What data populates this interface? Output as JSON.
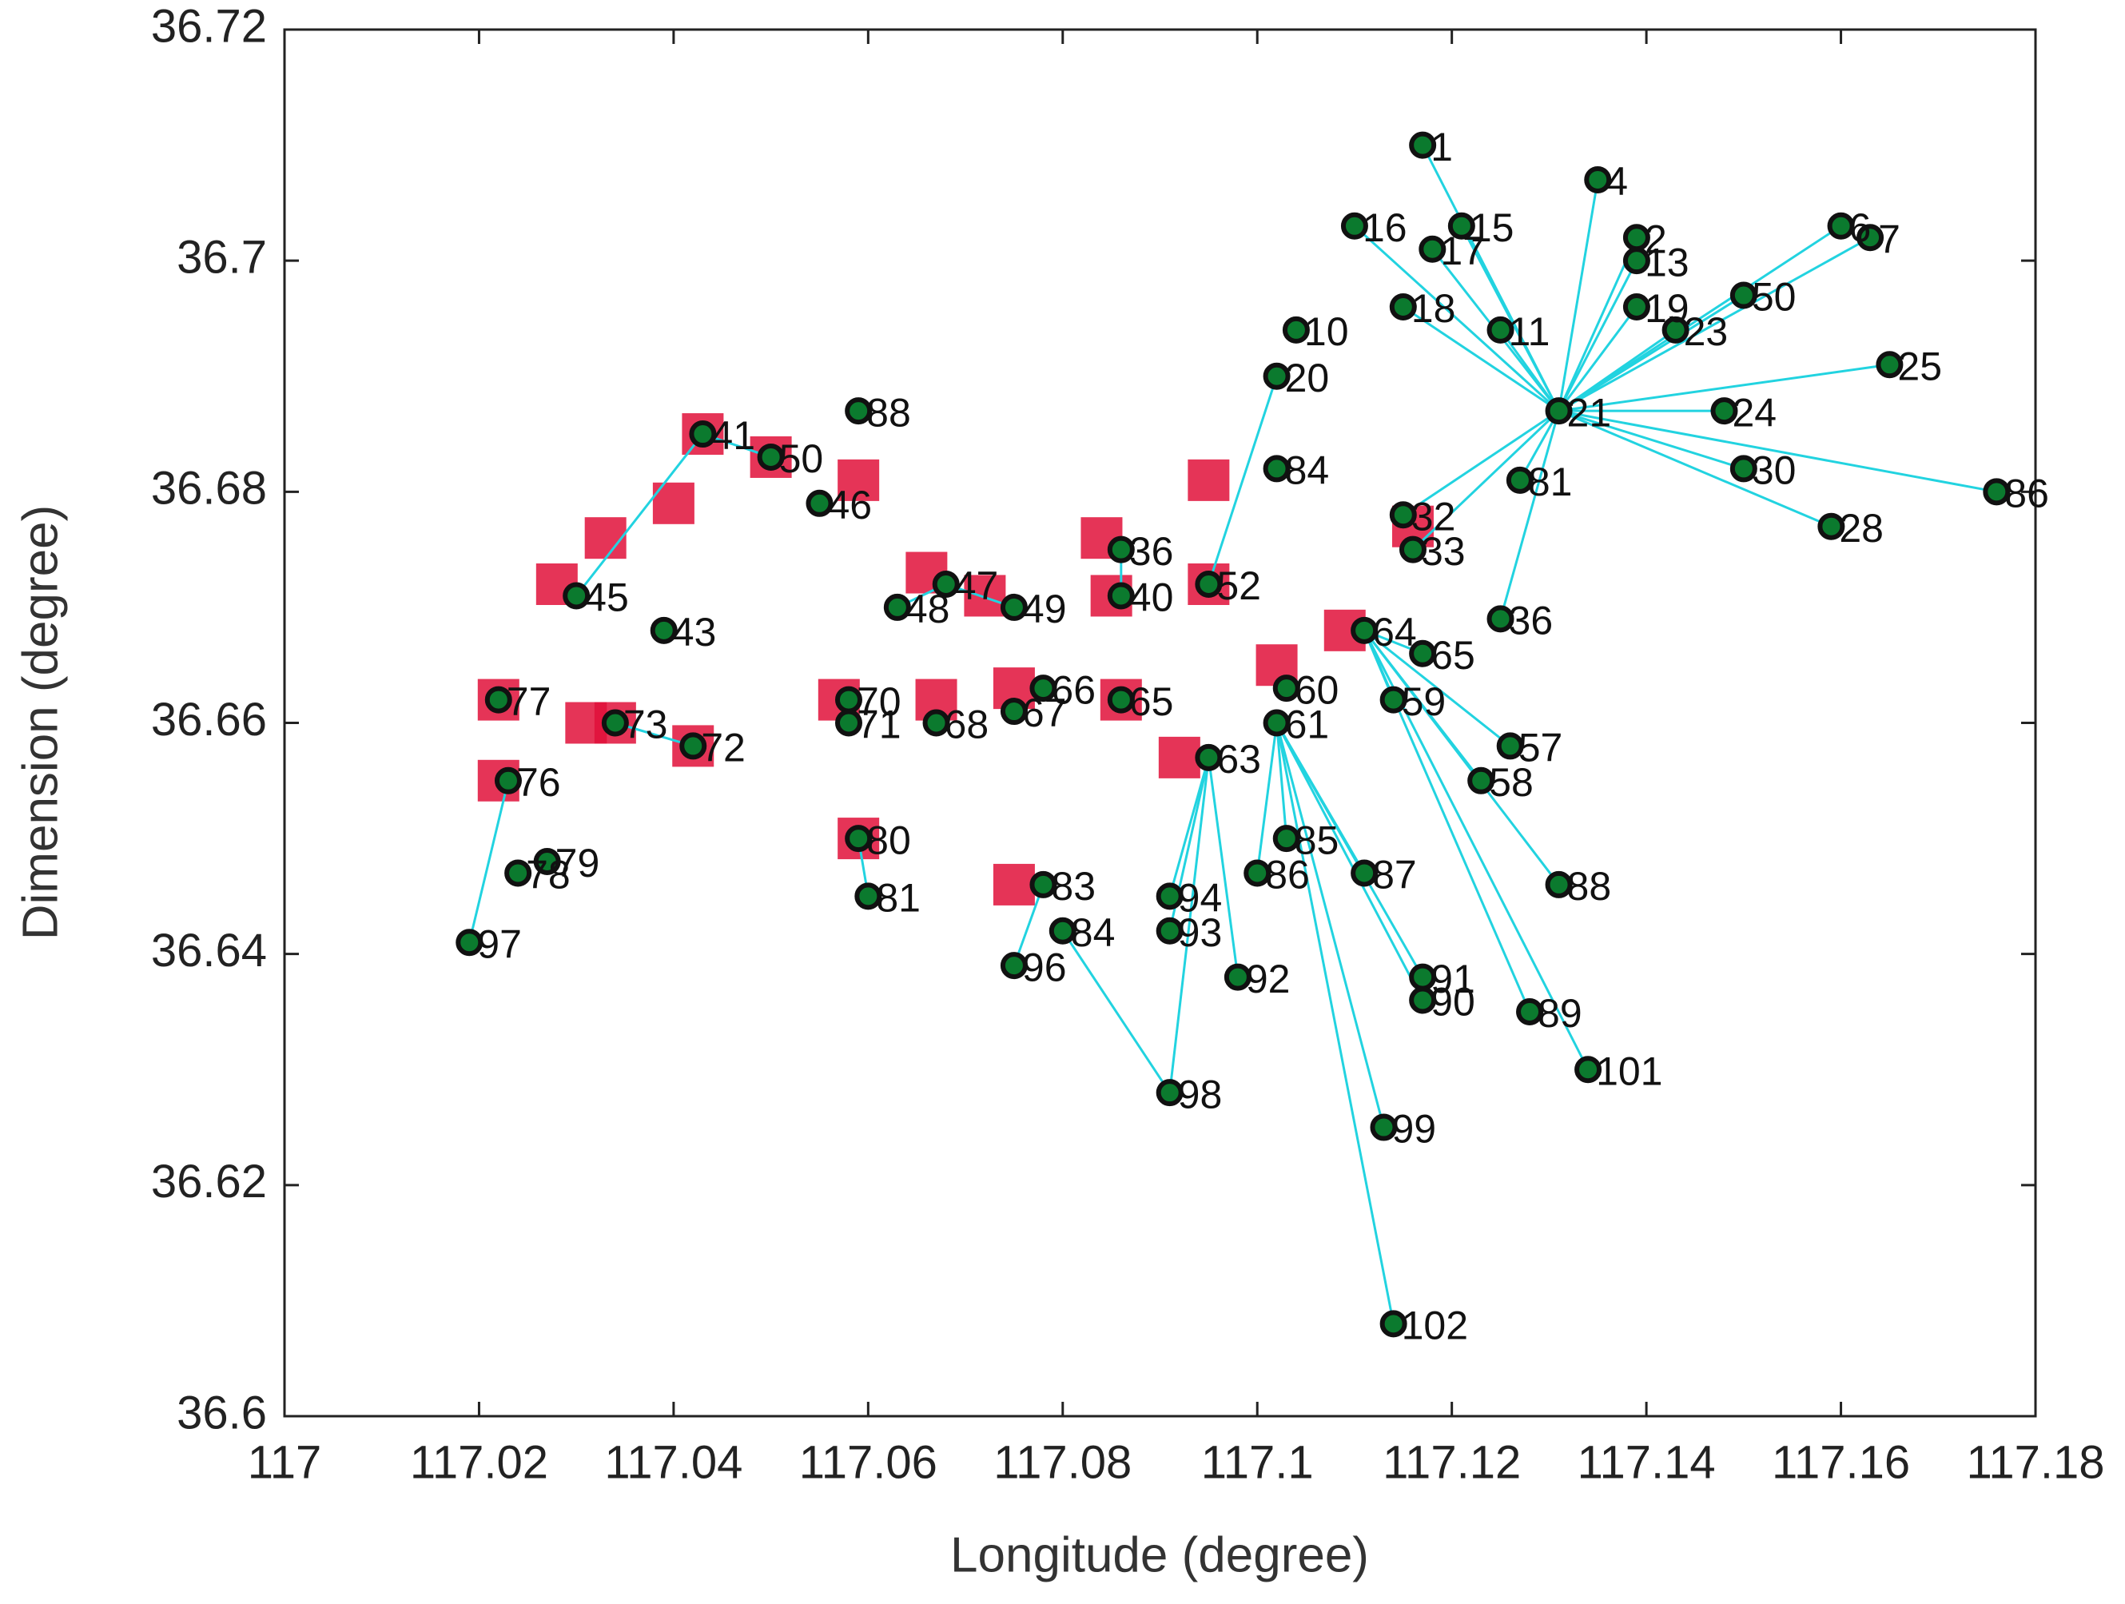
{
  "chart_data": {
    "type": "scatter",
    "xlabel": "Longitude (degree)",
    "ylabel": "Dimension (degree)",
    "xlim": [
      117,
      117.18
    ],
    "ylim": [
      36.6,
      36.72
    ],
    "xticks": [
      117,
      117.02,
      117.04,
      117.06,
      117.08,
      117.1,
      117.12,
      117.14,
      117.16,
      117.18
    ],
    "yticks": [
      36.6,
      36.62,
      36.64,
      36.66,
      36.68,
      36.7,
      36.72
    ],
    "point_color": "#0b7a2e",
    "center_color": "#e0103a",
    "link_color": "#22d3e0",
    "points": {
      "x": [
        117.131,
        117.114,
        117.019,
        117.091,
        117.113,
        117.176,
        117.165,
        117.059,
        117.102,
        117.095,
        117.102,
        117.135,
        117.148,
        117.159,
        117.15,
        117.111,
        117.117,
        117.114,
        117.126,
        117.123,
        117.131,
        117.111,
        117.103,
        117.1,
        117.117,
        117.117,
        117.128,
        117.134,
        117.098,
        117.091,
        117.091,
        117.075,
        117.08,
        117.078,
        117.059,
        117.06,
        117.042,
        117.034,
        117.022,
        117.023,
        117.027,
        117.024,
        117.058,
        117.058,
        117.067,
        117.075,
        117.078,
        117.086,
        117.102,
        117.103,
        117.095,
        117.068,
        117.075,
        117.063,
        117.055,
        117.05,
        117.043,
        117.03,
        117.039,
        117.086,
        117.086,
        117.143,
        117.139,
        117.139,
        117.139,
        117.16,
        117.163,
        117.15,
        117.115,
        117.125,
        117.11,
        117.121,
        117.118,
        117.104,
        117.127,
        117.115,
        117.116,
        117.125,
        117.117
      ],
      "y": [
        36.687,
        36.608,
        36.641,
        36.628,
        36.625,
        36.68,
        36.691,
        36.687,
        36.682,
        36.672,
        36.69,
        36.707,
        36.687,
        36.677,
        36.682,
        36.668,
        36.666,
        36.662,
        36.658,
        36.655,
        36.646,
        36.647,
        36.65,
        36.647,
        36.638,
        36.636,
        36.635,
        36.63,
        36.638,
        36.642,
        36.645,
        36.639,
        36.642,
        36.646,
        36.65,
        36.645,
        36.658,
        36.66,
        36.662,
        36.655,
        36.648,
        36.647,
        36.662,
        36.66,
        36.66,
        36.661,
        36.663,
        36.662,
        36.66,
        36.663,
        36.657,
        36.672,
        36.67,
        36.67,
        36.679,
        36.683,
        36.685,
        36.671,
        36.668,
        36.675,
        36.671,
        36.694,
        36.696,
        36.7,
        36.702,
        36.703,
        36.702,
        36.697,
        36.696,
        36.694,
        36.703,
        36.703,
        36.701,
        36.694,
        36.681,
        36.678,
        36.675,
        36.669,
        36.71
      ],
      "labels": [
        "21",
        "102",
        "97",
        "98",
        "99",
        "86",
        "25",
        "88",
        "84",
        "52",
        "20",
        "4",
        "24",
        "28",
        "30",
        "64",
        "65",
        "59",
        "57",
        "58",
        "88",
        "87",
        "85",
        "86",
        "91",
        "90",
        "89",
        "101",
        "92",
        "93",
        "94",
        "96",
        "84",
        "83",
        "80",
        "81",
        "72",
        "73",
        "77",
        "76",
        "79",
        "78",
        "70",
        "71",
        "68",
        "67",
        "66",
        "65",
        "61",
        "60",
        "63",
        "47",
        "49",
        "48",
        "46",
        "50",
        "41",
        "45",
        "43",
        "36",
        "40",
        "23",
        "19",
        "13",
        "2",
        "6",
        "7",
        "50",
        "18",
        "11",
        "16",
        "15",
        "17",
        "10",
        "81",
        "32",
        "33",
        "36",
        "1"
      ]
    },
    "links": [
      [
        0,
        5
      ],
      [
        0,
        6
      ],
      [
        0,
        11
      ],
      [
        0,
        12
      ],
      [
        0,
        13
      ],
      [
        0,
        14
      ],
      [
        0,
        61
      ],
      [
        0,
        62
      ],
      [
        0,
        63
      ],
      [
        0,
        64
      ],
      [
        0,
        65
      ],
      [
        0,
        66
      ],
      [
        0,
        67
      ],
      [
        0,
        68
      ],
      [
        0,
        69
      ],
      [
        0,
        70
      ],
      [
        0,
        71
      ],
      [
        0,
        72
      ],
      [
        0,
        74
      ],
      [
        0,
        75
      ],
      [
        0,
        76
      ],
      [
        0,
        77
      ],
      [
        0,
        78
      ],
      [
        48,
        1
      ],
      [
        48,
        4
      ],
      [
        48,
        22
      ],
      [
        48,
        23
      ],
      [
        48,
        21
      ],
      [
        48,
        24
      ],
      [
        48,
        25
      ],
      [
        50,
        3
      ],
      [
        50,
        29
      ],
      [
        50,
        30
      ],
      [
        50,
        28
      ],
      [
        15,
        16
      ],
      [
        15,
        17
      ],
      [
        15,
        18
      ],
      [
        15,
        19
      ],
      [
        15,
        20
      ],
      [
        15,
        26
      ],
      [
        15,
        27
      ],
      [
        2,
        39
      ],
      [
        31,
        33
      ],
      [
        32,
        3
      ],
      [
        34,
        35
      ],
      [
        36,
        37
      ],
      [
        56,
        55
      ],
      [
        56,
        57
      ],
      [
        51,
        52
      ],
      [
        51,
        53
      ],
      [
        59,
        60
      ],
      [
        9,
        10
      ],
      [
        42,
        43
      ]
    ],
    "centers": {
      "x": [
        117.043,
        117.05,
        117.04,
        117.059,
        117.033,
        117.028,
        117.022,
        117.031,
        117.034,
        117.042,
        117.022,
        117.057,
        117.066,
        117.072,
        117.067,
        117.075,
        117.084,
        117.085,
        117.086,
        117.095,
        117.095,
        117.102,
        117.092,
        117.116,
        117.109,
        117.059,
        117.075
      ],
      "y": [
        36.685,
        36.683,
        36.679,
        36.681,
        36.676,
        36.672,
        36.662,
        36.66,
        36.66,
        36.658,
        36.655,
        36.662,
        36.673,
        36.671,
        36.662,
        36.663,
        36.676,
        36.671,
        36.662,
        36.672,
        36.681,
        36.665,
        36.657,
        36.677,
        36.668,
        36.65,
        36.646
      ]
    }
  }
}
